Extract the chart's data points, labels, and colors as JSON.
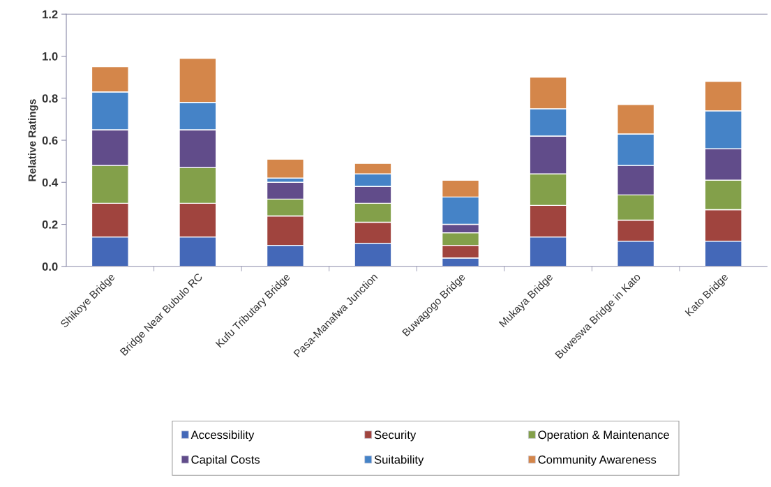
{
  "chart_data": {
    "type": "bar",
    "stacked": true,
    "ylabel": "Relative Ratings",
    "categories": [
      "Shikoye Bridge",
      "Bridge Near Bubulo RC",
      "Kufu Tributary Bridge",
      "Pasa-Manafwa Junction",
      "Buwagogo Bridge",
      "Mukaya Bridge",
      "Buweswa Bridge in Kato",
      "Kato Bridge"
    ],
    "series": [
      {
        "name": "Accessibility",
        "color": "#4468b8",
        "values": [
          0.14,
          0.14,
          0.1,
          0.11,
          0.04,
          0.14,
          0.12,
          0.12
        ]
      },
      {
        "name": "Security",
        "color": "#a0443e",
        "values": [
          0.16,
          0.16,
          0.14,
          0.1,
          0.06,
          0.15,
          0.1,
          0.15
        ]
      },
      {
        "name": "Operation & Maintenance",
        "color": "#83a04a",
        "values": [
          0.18,
          0.17,
          0.08,
          0.09,
          0.06,
          0.15,
          0.12,
          0.14
        ]
      },
      {
        "name": "Capital Costs",
        "color": "#614c8a",
        "values": [
          0.17,
          0.18,
          0.08,
          0.08,
          0.04,
          0.18,
          0.14,
          0.15
        ]
      },
      {
        "name": "Suitability",
        "color": "#4583c7",
        "values": [
          0.18,
          0.13,
          0.02,
          0.06,
          0.13,
          0.13,
          0.15,
          0.18
        ]
      },
      {
        "name": "Community Awareness",
        "color": "#d4864a",
        "values": [
          0.12,
          0.21,
          0.09,
          0.05,
          0.08,
          0.15,
          0.14,
          0.14
        ]
      }
    ],
    "ylim": [
      0,
      1.2
    ],
    "yticks": [
      {
        "value": 0,
        "label": "0.0"
      },
      {
        "value": 0.2,
        "label": "0.2"
      },
      {
        "value": 0.4,
        "label": "0.4"
      },
      {
        "value": 0.6,
        "label": "0.6"
      },
      {
        "value": 0.8,
        "label": "0.8"
      },
      {
        "value": 1.0,
        "label": "1.0"
      },
      {
        "value": 1.2,
        "label": "1.2"
      }
    ],
    "legend": "bottom",
    "grid": false
  }
}
